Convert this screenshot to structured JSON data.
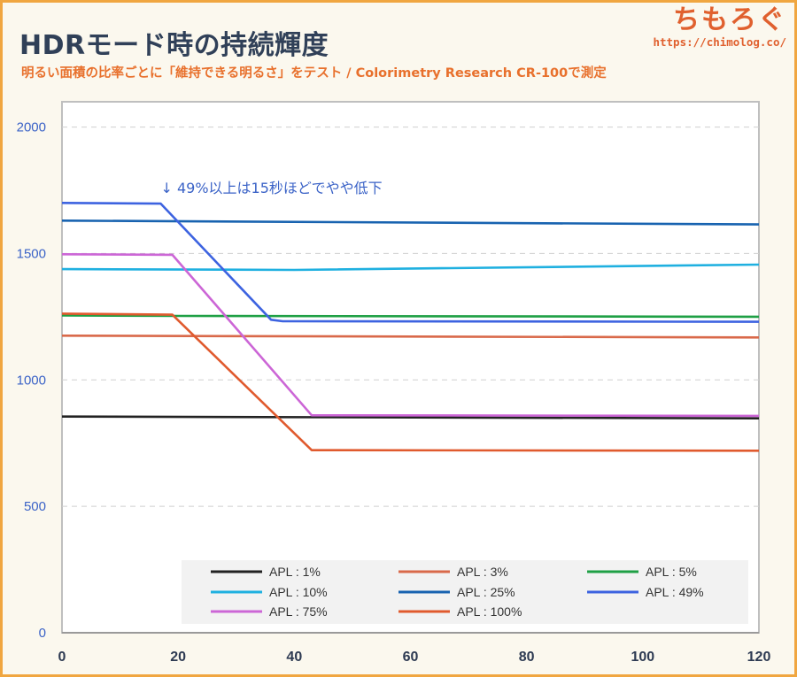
{
  "header": {
    "title": "HDRモード時の持続輝度",
    "subtitle": "明るい面積の比率ごとに「維持できる明るさ」をテスト / Colorimetry Research CR-100で測定"
  },
  "logo": {
    "name": "ちもろぐ",
    "url": "https://chimolog.co/",
    "color": "#e0602e"
  },
  "chart_data": {
    "type": "line",
    "title": "HDRモード時の持続輝度",
    "xlim": [
      0,
      120
    ],
    "ylim": [
      0,
      2100
    ],
    "xticks": [
      0,
      20,
      40,
      60,
      80,
      100,
      120
    ],
    "yticks": [
      0,
      500,
      1000,
      1500,
      2000
    ],
    "grid": true,
    "legend_position": "bottom-right",
    "annotation": {
      "text": "↓ 49%以上は15秒ほどでやや低下",
      "x": 17,
      "y": 1740
    },
    "series": [
      {
        "name": "APL : 1%",
        "color": "#222222",
        "points": [
          [
            0,
            855
          ],
          [
            120,
            848
          ]
        ]
      },
      {
        "name": "APL : 3%",
        "color": "#d9694a",
        "points": [
          [
            0,
            1175
          ],
          [
            120,
            1168
          ]
        ]
      },
      {
        "name": "APL : 5%",
        "color": "#1fa045",
        "points": [
          [
            0,
            1255
          ],
          [
            20,
            1253
          ],
          [
            120,
            1250
          ]
        ]
      },
      {
        "name": "APL : 10%",
        "color": "#1fb0e0",
        "points": [
          [
            0,
            1438
          ],
          [
            40,
            1435
          ],
          [
            120,
            1456
          ]
        ]
      },
      {
        "name": "APL : 25%",
        "color": "#1863b0",
        "points": [
          [
            0,
            1630
          ],
          [
            120,
            1615
          ]
        ]
      },
      {
        "name": "APL : 49%",
        "color": "#3d63e0",
        "points": [
          [
            0,
            1700
          ],
          [
            17,
            1697
          ],
          [
            36,
            1238
          ],
          [
            38,
            1232
          ],
          [
            120,
            1230
          ]
        ]
      },
      {
        "name": "APL : 75%",
        "color": "#cc66d6",
        "points": [
          [
            0,
            1497
          ],
          [
            19,
            1495
          ],
          [
            43,
            860
          ],
          [
            120,
            858
          ]
        ]
      },
      {
        "name": "APL : 100%",
        "color": "#e05a2e",
        "points": [
          [
            0,
            1262
          ],
          [
            19,
            1258
          ],
          [
            43,
            722
          ],
          [
            120,
            720
          ]
        ]
      }
    ]
  }
}
